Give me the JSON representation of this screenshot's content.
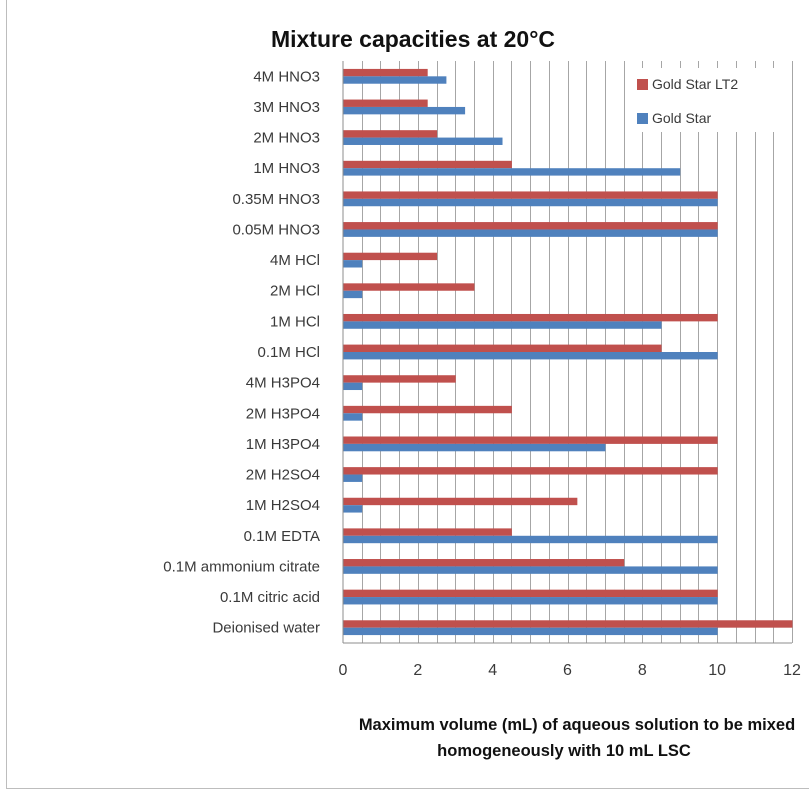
{
  "chart_data": {
    "type": "bar",
    "orientation": "horizontal",
    "title": "Mixture capacities at 20°C",
    "xlabel_lines": [
      "Maximum volume (mL) of aqueous solution to be mixed",
      "homogeneously with 10 mL LSC"
    ],
    "ylabel": "",
    "xlim": [
      0,
      12
    ],
    "xticks": [
      0,
      2,
      4,
      6,
      8,
      10,
      12
    ],
    "xtick_labels": [
      "0",
      "2",
      "4",
      "6",
      "8",
      "10",
      "12"
    ],
    "minor_gridline_step": 0.5,
    "grid": true,
    "legend_position": "top-right",
    "categories": [
      "4M HNO3",
      "3M HNO3",
      "2M HNO3",
      "1M HNO3",
      "0.35M HNO3",
      "0.05M HNO3",
      "4M HCl",
      "2M HCl",
      "1M HCl",
      "0.1M HCl",
      "4M H3PO4",
      "2M H3PO4",
      "1M H3PO4",
      "2M H2SO4",
      "1M H2SO4",
      "0.1M EDTA",
      "0.1M ammonium citrate",
      "0.1M citric acid",
      "Deionised water"
    ],
    "series": [
      {
        "name": "Gold Star LT2",
        "color": "#c0504d",
        "values": [
          2.25,
          2.25,
          2.5,
          4.5,
          10,
          10,
          2.5,
          3.5,
          10,
          8.5,
          3,
          4.5,
          10,
          10,
          6.25,
          4.5,
          7.5,
          10,
          12
        ]
      },
      {
        "name": "Gold Star",
        "color": "#4f81bd",
        "values": [
          2.75,
          3.25,
          4.25,
          9,
          10,
          10,
          0.5,
          0.5,
          8.5,
          10,
          0.5,
          0.5,
          7,
          0.5,
          0.5,
          10,
          10,
          10,
          10
        ]
      }
    ]
  }
}
